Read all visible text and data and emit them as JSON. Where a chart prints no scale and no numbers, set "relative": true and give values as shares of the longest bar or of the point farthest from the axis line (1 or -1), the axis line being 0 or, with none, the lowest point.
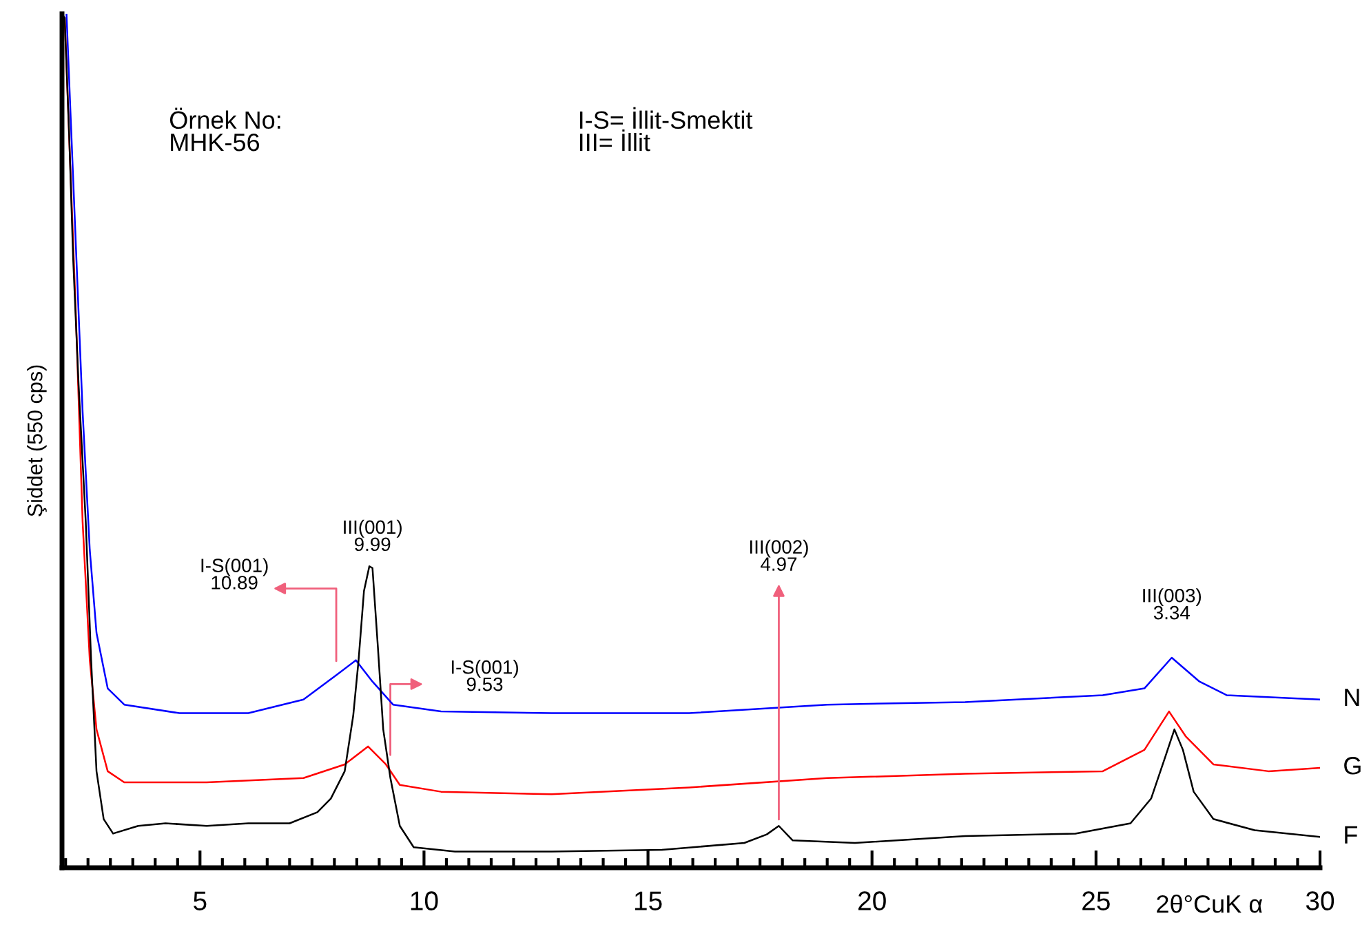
{
  "chart_data": {
    "type": "line",
    "relative": true,
    "xlabel": "2θ°CuK α",
    "ylabel": "Şiddet (550 cps)",
    "xlim": [
      1.92,
      30
    ],
    "xticks": [
      5,
      10,
      15,
      20,
      25,
      30,
      {
        "value": 2,
        "label": null
      },
      {
        "value": 2.5,
        "label": null
      },
      {
        "value": 3,
        "label": null
      },
      {
        "value": 3.5,
        "label": null
      },
      {
        "value": 4,
        "label": null
      },
      {
        "value": 4.5,
        "label": null
      },
      {
        "value": 5.5,
        "label": null
      },
      {
        "value": 6,
        "label": null
      },
      {
        "value": 6.5,
        "label": null
      },
      {
        "value": 7,
        "label": null
      },
      {
        "value": 7.5,
        "label": null
      },
      {
        "value": 8,
        "label": null
      },
      {
        "value": 8.5,
        "label": null
      },
      {
        "value": 9,
        "label": null
      },
      {
        "value": 9.5,
        "label": null
      },
      {
        "value": 10.5,
        "label": null
      },
      {
        "value": 11,
        "label": null
      },
      {
        "value": 11.5,
        "label": null
      },
      {
        "value": 12,
        "label": null
      },
      {
        "value": 12.5,
        "label": null
      },
      {
        "value": 13,
        "label": null
      },
      {
        "value": 13.5,
        "label": null
      },
      {
        "value": 14,
        "label": null
      },
      {
        "value": 14.5,
        "label": null
      },
      {
        "value": 15.5,
        "label": null
      },
      {
        "value": 16,
        "label": null
      },
      {
        "value": 16.5,
        "label": null
      },
      {
        "value": 17,
        "label": null
      },
      {
        "value": 17.5,
        "label": null
      },
      {
        "value": 18,
        "label": null
      },
      {
        "value": 18.5,
        "label": null
      },
      {
        "value": 19,
        "label": null
      },
      {
        "value": 19.5,
        "label": null
      },
      {
        "value": 20.5,
        "label": null
      },
      {
        "value": 21,
        "label": null
      },
      {
        "value": 21.5,
        "label": null
      },
      {
        "value": 22,
        "label": null
      },
      {
        "value": 22.5,
        "label": null
      },
      {
        "value": 23,
        "label": null
      },
      {
        "value": 23.5,
        "label": null
      },
      {
        "value": 24,
        "label": null
      },
      {
        "value": 24.5,
        "label": null
      },
      {
        "value": 25.5,
        "label": null
      },
      {
        "value": 26,
        "label": null
      },
      {
        "value": 26.5,
        "label": null
      },
      {
        "value": 27,
        "label": null
      },
      {
        "value": 27.5,
        "label": null
      },
      {
        "value": 28,
        "label": null
      },
      {
        "value": 28.5,
        "label": null
      },
      {
        "value": 29,
        "label": null
      },
      {
        "value": 29.5,
        "label": null
      }
    ],
    "grid": false,
    "legend": false,
    "series": [
      {
        "name": "N",
        "color": "#0000ff",
        "x": [
          2.02,
          2.23,
          2.38,
          2.54,
          2.69,
          2.94,
          3.31,
          4.54,
          6.08,
          7.31,
          8.08,
          8.48,
          8.85,
          9.31,
          10.38,
          12.85,
          15.92,
          19.0,
          22.08,
          25.15,
          26.08,
          26.69,
          27.31,
          27.92,
          30.0
        ],
        "values": [
          1.0,
          0.728,
          0.534,
          0.372,
          0.275,
          0.21,
          0.191,
          0.181,
          0.181,
          0.197,
          0.227,
          0.243,
          0.218,
          0.191,
          0.183,
          0.181,
          0.181,
          0.191,
          0.194,
          0.202,
          0.21,
          0.246,
          0.218,
          0.202,
          0.197
        ]
      },
      {
        "name": "G",
        "color": "#ff0000",
        "x": [
          1.98,
          2.23,
          2.38,
          2.54,
          2.69,
          2.94,
          3.31,
          5.15,
          7.31,
          8.23,
          8.75,
          9.15,
          9.46,
          10.38,
          12.85,
          15.92,
          19.0,
          22.08,
          25.15,
          26.08,
          26.63,
          27.0,
          27.62,
          28.85,
          30.0
        ],
        "values": [
          0.995,
          0.647,
          0.405,
          0.243,
          0.162,
          0.113,
          0.1,
          0.1,
          0.105,
          0.121,
          0.142,
          0.121,
          0.097,
          0.089,
          0.086,
          0.094,
          0.105,
          0.11,
          0.113,
          0.138,
          0.183,
          0.154,
          0.121,
          0.113,
          0.117
        ]
      },
      {
        "name": "F",
        "color": "#000000",
        "x": [
          1.92,
          1.98,
          2.08,
          2.17,
          2.29,
          2.45,
          2.57,
          2.69,
          2.85,
          3.06,
          3.62,
          4.23,
          5.15,
          6.08,
          7.0,
          7.62,
          7.92,
          8.23,
          8.42,
          8.54,
          8.66,
          8.78,
          8.85,
          8.97,
          9.09,
          9.25,
          9.46,
          9.77,
          10.69,
          12.85,
          15.31,
          17.15,
          17.65,
          17.92,
          18.23,
          19.62,
          22.08,
          24.54,
          25.77,
          26.23,
          26.54,
          26.75,
          26.94,
          27.18,
          27.62,
          28.54,
          30.0
        ],
        "values": [
          1.0,
          0.995,
          0.858,
          0.712,
          0.566,
          0.405,
          0.243,
          0.113,
          0.057,
          0.04,
          0.049,
          0.052,
          0.049,
          0.052,
          0.052,
          0.065,
          0.081,
          0.113,
          0.178,
          0.243,
          0.324,
          0.353,
          0.351,
          0.259,
          0.162,
          0.105,
          0.049,
          0.024,
          0.019,
          0.019,
          0.021,
          0.029,
          0.039,
          0.049,
          0.032,
          0.029,
          0.037,
          0.04,
          0.052,
          0.081,
          0.129,
          0.162,
          0.138,
          0.089,
          0.057,
          0.044,
          0.036
        ]
      }
    ],
    "annotations": [
      "Örnek No:\nMHK-56",
      "I-S= İllit-Smektit\nIII= İllit",
      {
        "text": "III(001)\n9.99",
        "x": 8.85,
        "y": 0.353
      },
      "I-S(001)\n10.89",
      "I-S(001)\n9.53",
      {
        "text": "III(002)\n4.97",
        "x": 17.92,
        "y": 0.052
      },
      {
        "text": "III(003)\n3.34",
        "x": 26.69,
        "y": 0.246
      }
    ]
  }
}
